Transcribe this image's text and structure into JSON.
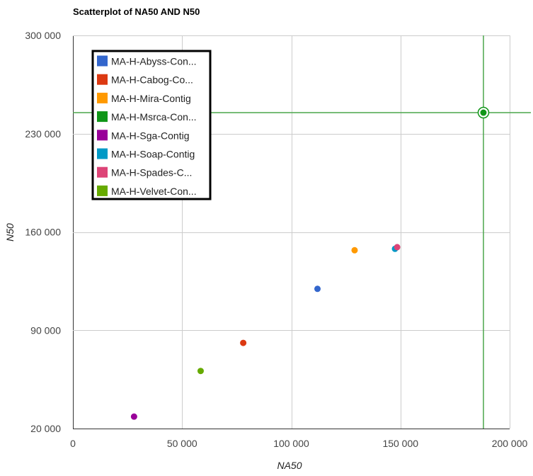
{
  "chart_data": {
    "type": "scatter",
    "title": "Scatterplot of NA50 AND N50",
    "xlabel": "NA50",
    "ylabel": "N50",
    "xlim": [
      0,
      200000
    ],
    "ylim": [
      20000,
      300000
    ],
    "x_ticks": [
      0,
      50000,
      100000,
      150000,
      200000
    ],
    "x_tick_labels": [
      "0",
      "50 000",
      "100 000",
      "150 000",
      "200 000"
    ],
    "y_ticks": [
      20000,
      90000,
      160000,
      230000,
      300000
    ],
    "y_tick_labels": [
      "20 000",
      "90 000",
      "160 000",
      "230 000",
      "300 000"
    ],
    "grid": true,
    "legend_position": "top-left",
    "series": [
      {
        "name": "MA-H-Abyss-Con...",
        "color": "#3366cc",
        "points": [
          [
            112000,
            119500
          ]
        ]
      },
      {
        "name": "MA-H-Cabog-Co...",
        "color": "#dc3912",
        "points": [
          [
            78000,
            81000
          ]
        ]
      },
      {
        "name": "MA-H-Mira-Contig",
        "color": "#ff9900",
        "points": [
          [
            129000,
            147000
          ]
        ]
      },
      {
        "name": "MA-H-Msrca-Con...",
        "color": "#109618",
        "points": [
          [
            188000,
            245000
          ]
        ]
      },
      {
        "name": "MA-H-Sga-Contig",
        "color": "#990099",
        "points": [
          [
            28000,
            28500
          ]
        ]
      },
      {
        "name": "MA-H-Soap-Contig",
        "color": "#0099c6",
        "points": [
          [
            147500,
            148000
          ]
        ]
      },
      {
        "name": "MA-H-Spades-C...",
        "color": "#dd4477",
        "points": [
          [
            148500,
            149200
          ]
        ]
      },
      {
        "name": "MA-H-Velvet-Con...",
        "color": "#66aa00",
        "points": [
          [
            58500,
            61000
          ]
        ]
      }
    ],
    "highlight": {
      "series_index": 3,
      "crosshair_color": "#4ca64c"
    }
  }
}
